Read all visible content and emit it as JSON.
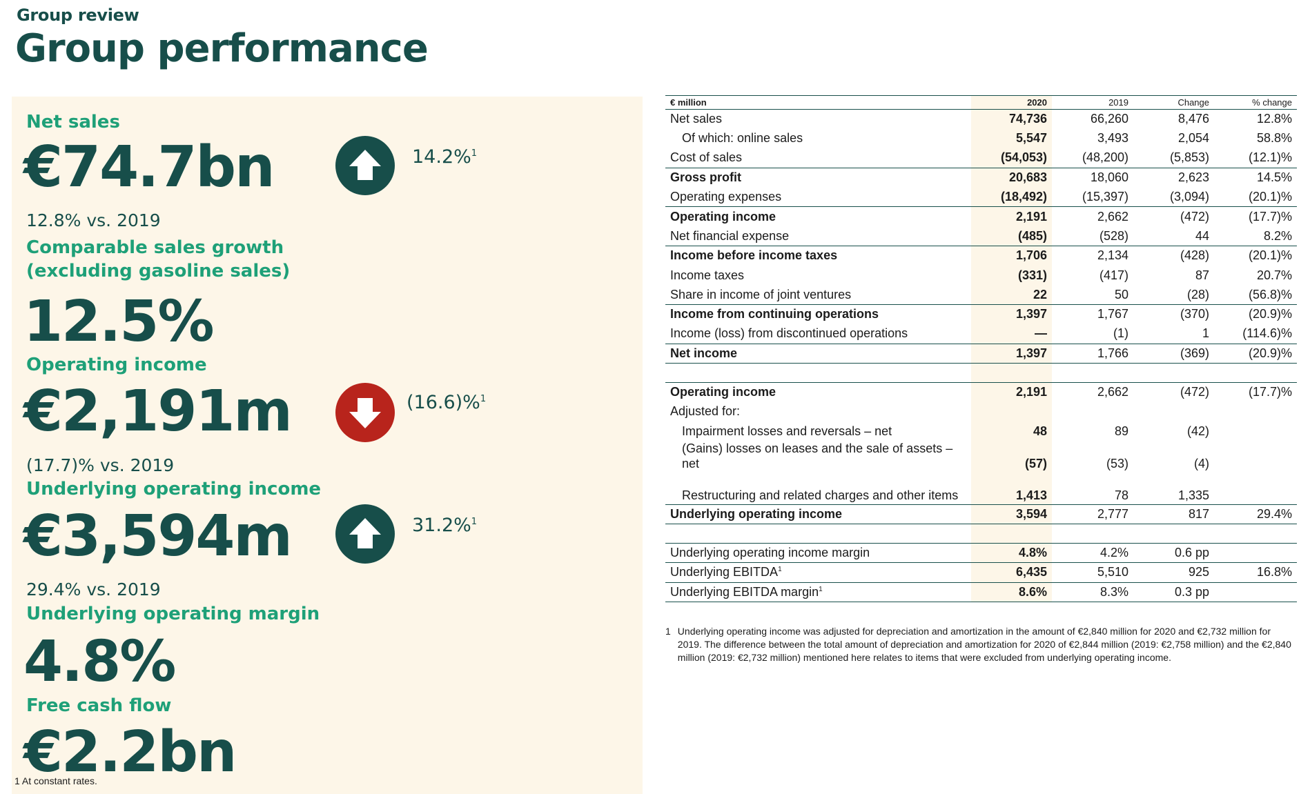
{
  "header": {
    "section": "Group review",
    "title": "Group performance"
  },
  "kpis": {
    "net_sales": {
      "label": "Net sales",
      "value": "€74.7bn",
      "change": "14.2%",
      "change_note": "1",
      "sub": "12.8% vs. 2019",
      "direction": "up"
    },
    "comparable": {
      "label_line1": "Comparable sales growth",
      "label_line2": "(excluding gasoline sales)",
      "value": "12.5%"
    },
    "operating_income": {
      "label": "Operating income",
      "value": "€2,191m",
      "change": "(16.6)%",
      "change_note": "1",
      "sub": "(17.7)% vs. 2019",
      "direction": "down"
    },
    "underlying_oi": {
      "label": "Underlying operating income",
      "value": "€3,594m",
      "change": "31.2%",
      "change_note": "1",
      "sub": "29.4% vs. 2019",
      "direction": "up"
    },
    "underlying_margin": {
      "label": "Underlying operating margin",
      "value": "4.8%"
    },
    "fcf": {
      "label": "Free cash flow",
      "value": "€2.2bn"
    },
    "footnote": "1  At constant rates.",
    "colors": {
      "up": "#174e4a",
      "down": "#b8241c",
      "panel": "#fdf6e8",
      "accent": "#1ea078"
    }
  },
  "table": {
    "headers": {
      "label": "€ million",
      "y2020": "2020",
      "y2019": "2019",
      "change": "Change",
      "pct": "% change"
    },
    "rows": [
      {
        "label": "Net sales",
        "v2020": "74,736",
        "v2019": "66,260",
        "change": "8,476",
        "pct": "12.8%"
      },
      {
        "label": "Of which: online sales",
        "v2020": "5,547",
        "v2019": "3,493",
        "change": "2,054",
        "pct": "58.8%"
      },
      {
        "label": "Cost of sales",
        "v2020": "(54,053)",
        "v2019": "(48,200)",
        "change": "(5,853)",
        "pct": "(12.1)%"
      },
      {
        "label": "Gross profit",
        "v2020": "20,683",
        "v2019": "18,060",
        "change": "2,623",
        "pct": "14.5%"
      },
      {
        "label": "Operating expenses",
        "v2020": "(18,492)",
        "v2019": "(15,397)",
        "change": "(3,094)",
        "pct": "(20.1)%"
      },
      {
        "label": "Operating income",
        "v2020": "2,191",
        "v2019": "2,662",
        "change": "(472)",
        "pct": "(17.7)%"
      },
      {
        "label": "Net financial expense",
        "v2020": "(485)",
        "v2019": "(528)",
        "change": "44",
        "pct": "8.2%"
      },
      {
        "label": "Income before income taxes",
        "v2020": "1,706",
        "v2019": "2,134",
        "change": "(428)",
        "pct": "(20.1)%"
      },
      {
        "label": "Income taxes",
        "v2020": "(331)",
        "v2019": "(417)",
        "change": "87",
        "pct": "20.7%"
      },
      {
        "label": "Share in income of joint ventures",
        "v2020": "22",
        "v2019": "50",
        "change": "(28)",
        "pct": "(56.8)%"
      },
      {
        "label": "Income from continuing operations",
        "v2020": "1,397",
        "v2019": "1,767",
        "change": "(370)",
        "pct": "(20.9)%"
      },
      {
        "label": "Income (loss) from discontinued operations",
        "v2020": "—",
        "v2019": "(1)",
        "change": "1",
        "pct": "(114.6)%"
      },
      {
        "label": "Net income",
        "v2020": "1,397",
        "v2019": "1,766",
        "change": "(369)",
        "pct": "(20.9)%"
      },
      {
        "label": "Operating income",
        "v2020": "2,191",
        "v2019": "2,662",
        "change": "(472)",
        "pct": "(17.7)%"
      },
      {
        "label": "Adjusted for:",
        "v2020": "",
        "v2019": "",
        "change": "",
        "pct": ""
      },
      {
        "label": "Impairment losses and reversals – net",
        "v2020": "48",
        "v2019": "89",
        "change": "(42)",
        "pct": ""
      },
      {
        "label": "(Gains) losses on leases and the sale of assets – net",
        "v2020": "(57)",
        "v2019": "(53)",
        "change": "(4)",
        "pct": ""
      },
      {
        "label": "Restructuring and related charges and other items",
        "v2020": "1,413",
        "v2019": "78",
        "change": "1,335",
        "pct": ""
      },
      {
        "label": "Underlying operating income",
        "v2020": "3,594",
        "v2019": "2,777",
        "change": "817",
        "pct": "29.4%"
      },
      {
        "label": "Underlying operating income margin",
        "v2020": "4.8%",
        "v2019": "4.2%",
        "change": "0.6 pp",
        "pct": ""
      },
      {
        "label": "Underlying EBITDA",
        "note": "1",
        "v2020": "6,435",
        "v2019": "5,510",
        "change": "925",
        "pct": "16.8%"
      },
      {
        "label": "Underlying EBITDA margin",
        "note": "1",
        "v2020": "8.6%",
        "v2019": "8.3%",
        "change": "0.3 pp",
        "pct": ""
      }
    ],
    "footnote_num": "1",
    "footnote_text": "Underlying operating income was adjusted for depreciation and amortization in the amount of €2,840 million for 2020 and €2,732 million for 2019. The difference between the total amount of depreciation and amortization for 2020 of €2,844 million (2019: €2,758 million) and the €2,840 million (2019: €2,732 million) mentioned here relates to items that were excluded from underlying operating income."
  }
}
